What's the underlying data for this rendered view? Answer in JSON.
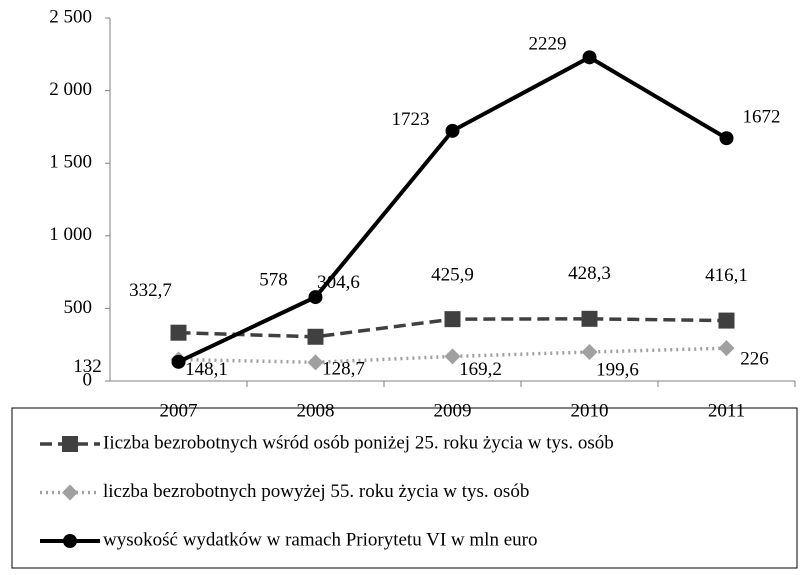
{
  "chart_data": {
    "type": "line",
    "categories": [
      "2007",
      "2008",
      "2009",
      "2010",
      "2011"
    ],
    "series": [
      {
        "name": "Iiczba bezrobotnych wśród osób poniżej 25. roku życia w tys. osób",
        "color": "#404040",
        "marker": "square",
        "dash": "dashed",
        "values": [
          332.7,
          304.6,
          425.9,
          428.3,
          416.1
        ],
        "value_labels": [
          "332,7",
          "304,6",
          "425,9",
          "428,3",
          "416,1"
        ]
      },
      {
        "name": "liczba bezrobotnych powyżej 55. roku życia w tys. osób",
        "color": "#a0a0a0",
        "marker": "diamond",
        "dash": "dotted",
        "values": [
          148.1,
          128.7,
          169.2,
          199.6,
          226
        ],
        "value_labels": [
          "148,1",
          "128,7",
          "169,2",
          "199,6",
          "226"
        ]
      },
      {
        "name": "wysokość wydatków w ramach Priorytetu VI w mln euro",
        "color": "#000000",
        "marker": "circle",
        "dash": "solid",
        "values": [
          132,
          578,
          1723,
          2229,
          1672
        ]
      }
    ],
    "ylim": [
      0,
      2500
    ],
    "yticks": [
      0,
      500,
      {
        "value": 1000,
        "label": "1 000"
      },
      {
        "value": 1500,
        "label": "1 500"
      },
      {
        "value": 2000,
        "label": "2 000"
      },
      {
        "value": 2500,
        "label": "2 500"
      }
    ],
    "grid": false,
    "legend": "bottom"
  }
}
